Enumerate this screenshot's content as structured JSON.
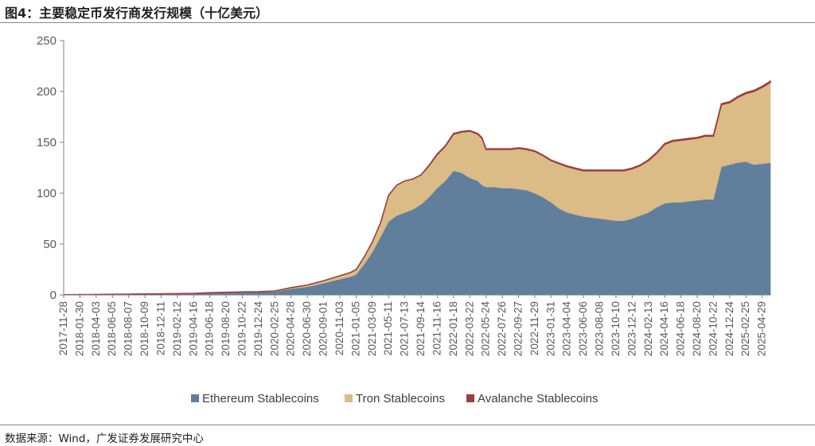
{
  "header": {
    "title": "图4：主要稳定币发行商发行规模（十亿美元）"
  },
  "footer": {
    "source": "数据来源：Wind，广发证券发展研究中心"
  },
  "chart_data": {
    "type": "area",
    "stacked": true,
    "ylim": [
      0,
      250
    ],
    "yticks": [
      0,
      50,
      100,
      150,
      200,
      250
    ],
    "grid": false,
    "legend_position": "bottom",
    "x_tick_labels": [
      "2017-11-28",
      "2018-01-30",
      "2018-04-03",
      "2018-06-05",
      "2018-08-07",
      "2018-10-09",
      "2018-12-11",
      "2019-02-12",
      "2019-04-16",
      "2019-06-18",
      "2019-08-20",
      "2019-10-22",
      "2019-12-24",
      "2020-02-25",
      "2020-04-28",
      "2020-06-30",
      "2020-09-01",
      "2020-11-03",
      "2021-01-05",
      "2021-03-09",
      "2021-05-11",
      "2021-07-13",
      "2021-09-14",
      "2021-11-16",
      "2022-01-18",
      "2022-03-22",
      "2022-05-24",
      "2022-07-26",
      "2022-09-27",
      "2022-11-29",
      "2023-01-31",
      "2023-04-04",
      "2023-06-06",
      "2023-08-08",
      "2023-10-10",
      "2023-12-12",
      "2024-02-13",
      "2024-04-16",
      "2024-06-18",
      "2024-08-20",
      "2024-10-22",
      "2024-12-24",
      "2025-02-25",
      "2025-04-29"
    ],
    "x": [
      "2017-11-28",
      "2018-01-30",
      "2018-04-03",
      "2018-06-05",
      "2018-08-07",
      "2018-10-09",
      "2018-12-11",
      "2019-02-12",
      "2019-04-16",
      "2019-06-18",
      "2019-08-20",
      "2019-10-22",
      "2019-12-24",
      "2020-02-25",
      "2020-04-28",
      "2020-06-30",
      "2020-09-01",
      "2020-11-03",
      "2020-12-15",
      "2021-01-05",
      "2021-02-05",
      "2021-03-09",
      "2021-04-10",
      "2021-05-11",
      "2021-06-12",
      "2021-07-13",
      "2021-08-13",
      "2021-09-14",
      "2021-10-15",
      "2021-11-16",
      "2021-12-17",
      "2022-01-18",
      "2022-02-18",
      "2022-03-22",
      "2022-04-22",
      "2022-05-08",
      "2022-05-24",
      "2022-06-25",
      "2022-07-26",
      "2022-08-26",
      "2022-09-27",
      "2022-10-28",
      "2022-11-29",
      "2022-12-30",
      "2023-01-31",
      "2023-03-03",
      "2023-04-04",
      "2023-05-05",
      "2023-06-06",
      "2023-07-07",
      "2023-08-08",
      "2023-09-08",
      "2023-10-10",
      "2023-11-10",
      "2023-12-12",
      "2024-01-12",
      "2024-02-13",
      "2024-03-15",
      "2024-04-16",
      "2024-05-17",
      "2024-06-18",
      "2024-07-19",
      "2024-08-20",
      "2024-09-20",
      "2024-10-22",
      "2024-11-22",
      "2024-12-24",
      "2025-01-24",
      "2025-02-25",
      "2025-03-28",
      "2025-04-29",
      "2025-05-31"
    ],
    "series": [
      {
        "name": "Ethereum Stablecoins",
        "color": "#5f7f9c",
        "values": [
          0.2,
          0.3,
          0.5,
          0.6,
          0.8,
          1.0,
          1.1,
          1.3,
          1.6,
          2.2,
          2.6,
          3.0,
          3.2,
          3.3,
          6.0,
          8.0,
          11.5,
          15.5,
          18.0,
          20.0,
          30.0,
          42.0,
          57.0,
          72.0,
          78.0,
          81.0,
          84.0,
          89.0,
          96.0,
          105.0,
          112.0,
          122.0,
          120.0,
          115.0,
          112.0,
          108.0,
          106.0,
          106.0,
          105.0,
          105.0,
          104.0,
          103.0,
          100.0,
          96.0,
          91.0,
          85.0,
          81.0,
          79.0,
          77.0,
          76.0,
          75.0,
          74.0,
          73.0,
          73.0,
          75.0,
          78.0,
          81.0,
          86.0,
          90.0,
          91.0,
          91.0,
          92.0,
          93.0,
          94.0,
          94.0,
          126.0,
          128.0,
          130.0,
          131.0,
          128.0,
          129.0,
          130.0
        ]
      },
      {
        "name": "Tron Stablecoins",
        "color": "#dbbb86",
        "values": [
          0,
          0,
          0,
          0,
          0,
          0,
          0,
          0,
          0,
          0,
          0,
          0,
          0,
          0.6,
          1.2,
          1.8,
          2.5,
          3.3,
          4.2,
          5.0,
          7.0,
          10.0,
          14.0,
          26.0,
          30.0,
          31.0,
          30.0,
          29.0,
          31.0,
          33.0,
          34.0,
          36.0,
          40.0,
          46.0,
          46.0,
          46.0,
          37.0,
          37.0,
          38.0,
          38.0,
          40.0,
          40.0,
          41.0,
          41.0,
          41.0,
          44.0,
          45.0,
          45.0,
          45.0,
          46.0,
          47.0,
          48.0,
          49.0,
          49.0,
          49.0,
          49.0,
          51.0,
          53.0,
          58.0,
          60.0,
          61.0,
          61.0,
          61.0,
          62.0,
          62.0,
          61.0,
          61.0,
          64.0,
          67.0,
          72.0,
          75.0,
          79.0
        ]
      },
      {
        "name": "Avalanche Stablecoins",
        "color": "#9b3e3e",
        "values": [
          0,
          0,
          0,
          0,
          0,
          0,
          0,
          0,
          0,
          0,
          0,
          0,
          0,
          0,
          0,
          0,
          0,
          0,
          0,
          0,
          0,
          0,
          0,
          0,
          0,
          0,
          0,
          0,
          0.4,
          0.5,
          0.5,
          0.6,
          0.6,
          0.6,
          0.6,
          0.6,
          0.6,
          0.6,
          0.6,
          0.6,
          0.6,
          0.6,
          0.6,
          0.6,
          0.6,
          0.6,
          0.7,
          0.7,
          0.7,
          0.7,
          0.7,
          0.7,
          0.7,
          0.7,
          0.7,
          0.7,
          0.8,
          0.8,
          0.8,
          0.8,
          0.8,
          0.8,
          0.8,
          0.8,
          0.9,
          0.9,
          0.9,
          0.9,
          0.9,
          1.0,
          1.0,
          1.0
        ]
      }
    ]
  }
}
